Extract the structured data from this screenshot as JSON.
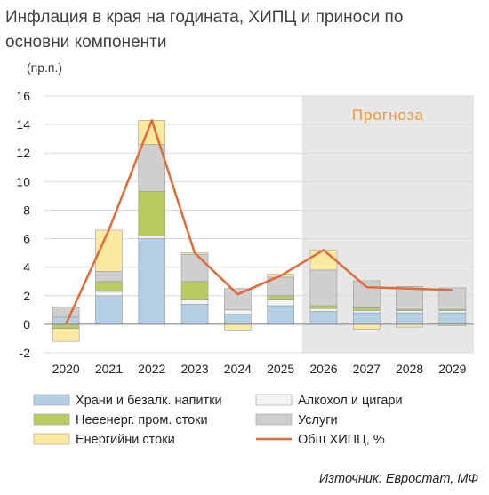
{
  "title": "Инфлация в края на годината, ХИПЦ и приноси по основни компоненти",
  "unit_label": "(пр.п.)",
  "forecast_label": "Прогноза",
  "source": "Източник: Евростат, МФ",
  "colors": {
    "food": "#b4cfe6",
    "alcohol": "#f4f4f4",
    "industrial": "#b8cc62",
    "services": "#cfcfcf",
    "energy": "#fde9a2",
    "total": "#e06a38",
    "forecast_bg": "#e7e7e7",
    "forecast_text": "#ef9a2e",
    "bar_border": "#9b9b9b"
  },
  "chart_data": {
    "type": "bar",
    "stacked": true,
    "categories": [
      "2020",
      "2021",
      "2022",
      "2023",
      "2024",
      "2025",
      "2026",
      "2027",
      "2028",
      "2029"
    ],
    "ylim": [
      -2,
      16
    ],
    "yticks": [
      -2,
      0,
      2,
      4,
      6,
      8,
      10,
      12,
      14,
      16
    ],
    "forecast_from": "2026",
    "grid": true,
    "legend_position": "bottom",
    "series": [
      {
        "key": "food",
        "name": "Храни и безалк. напитки",
        "values": [
          0.5,
          2.0,
          6.0,
          1.4,
          0.7,
          1.3,
          0.9,
          0.8,
          0.8,
          0.8
        ]
      },
      {
        "key": "alcohol",
        "name": "Алкохол и цигари",
        "values": [
          0.0,
          0.3,
          0.2,
          0.3,
          0.3,
          0.4,
          0.2,
          0.15,
          0.15,
          0.15
        ]
      },
      {
        "key": "industrial",
        "name": "Нееенерг. пром. стоки",
        "values": [
          -0.3,
          0.7,
          3.1,
          1.3,
          0.0,
          0.3,
          0.2,
          0.2,
          0.1,
          0.1
        ]
      },
      {
        "key": "services",
        "name": "Услуги",
        "values": [
          0.7,
          0.7,
          3.3,
          1.9,
          1.5,
          1.3,
          2.5,
          1.9,
          1.6,
          1.5
        ]
      },
      {
        "key": "energy",
        "name": "Енергийни стоки",
        "values": [
          -0.9,
          2.9,
          1.7,
          0.1,
          -0.4,
          0.2,
          1.4,
          -0.35,
          -0.2,
          -0.1
        ]
      }
    ],
    "line": {
      "name": "Общ ХИПЦ, %",
      "values": [
        0.0,
        6.6,
        14.3,
        5.0,
        2.1,
        3.4,
        5.2,
        2.6,
        2.5,
        2.4
      ]
    }
  }
}
